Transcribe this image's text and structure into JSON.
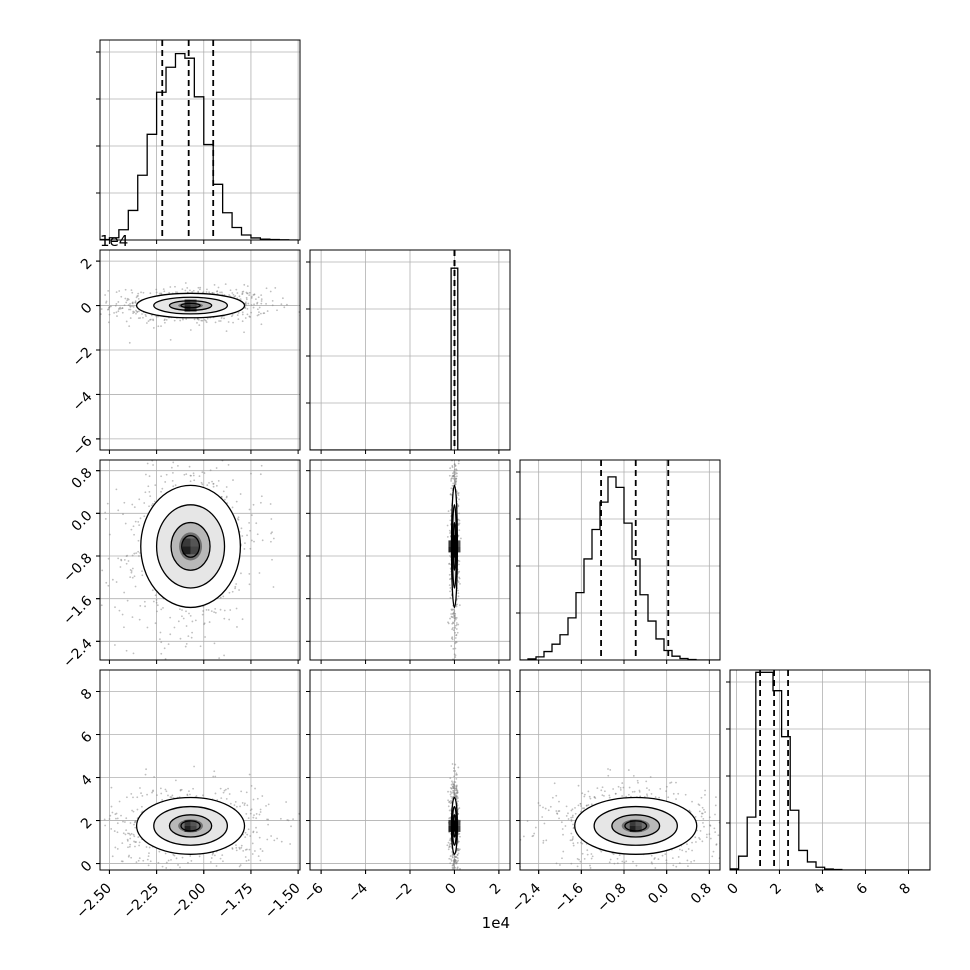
{
  "chart_data": {
    "type": "corner",
    "grid": true,
    "colors": {
      "line": "#000000",
      "grid": "#b0b0b0",
      "scatter": "#808080",
      "axes_bg": "#ffffff"
    },
    "x_offset_labels": [
      "",
      "1e4",
      "",
      ""
    ],
    "y_offset_labels": [
      "",
      "1e4",
      "",
      ""
    ],
    "params": [
      {
        "range": [
          -2.55,
          -1.49
        ],
        "ticks": [
          -2.5,
          -2.25,
          -2.0,
          -1.75,
          -1.5
        ],
        "tick_labels": [
          "−2.50",
          "−2.25",
          "−2.00",
          "−1.75",
          "−1.50"
        ]
      },
      {
        "range": [
          -6.5,
          2.5
        ],
        "ticks": [
          -6,
          -4,
          -2,
          0,
          2
        ],
        "tick_labels": [
          "−6",
          "−4",
          "−2",
          "0",
          "2"
        ]
      },
      {
        "range": [
          -2.75,
          1.0
        ],
        "ticks": [
          -2.4,
          -1.6,
          -0.8,
          0.0,
          0.8
        ],
        "tick_labels": [
          "−2.4",
          "−1.6",
          "−0.8",
          "0.0",
          "0.8"
        ]
      },
      {
        "range": [
          -0.3,
          9.0
        ],
        "ticks": [
          0,
          2,
          4,
          6,
          8
        ],
        "tick_labels": [
          "0",
          "2",
          "4",
          "6",
          "8"
        ]
      }
    ],
    "histograms": [
      {
        "bins": [
          -2.55,
          -2.5,
          -2.45,
          -2.4,
          -2.35,
          -2.3,
          -2.25,
          -2.2,
          -2.15,
          -2.1,
          -2.05,
          -2.0,
          -1.95,
          -1.9,
          -1.85,
          -1.8,
          -1.75,
          -1.7,
          -1.65,
          -1.6,
          -1.55,
          -1.5
        ],
        "counts": [
          2,
          10,
          45,
          130,
          285,
          465,
          650,
          760,
          820,
          800,
          630,
          420,
          245,
          120,
          55,
          22,
          9,
          4,
          2,
          1,
          0
        ],
        "ymax": 880,
        "quantiles": [
          -2.22,
          -2.08,
          -1.95
        ]
      },
      {
        "bins": [
          -6.5,
          -6.0,
          -5.5,
          -5.0,
          -4.5,
          -4.0,
          -3.5,
          -3.0,
          -2.5,
          -2.0,
          -1.5,
          -1.0,
          -0.5,
          -0.15,
          0.15,
          0.5,
          1.0,
          1.5,
          2.0,
          2.5
        ],
        "counts": [
          0,
          0,
          0,
          0,
          0,
          0,
          0,
          0,
          0,
          0,
          0,
          0,
          0,
          1000,
          0,
          0,
          0,
          0,
          0
        ],
        "ymax": 1100,
        "quantiles": [
          0.0,
          0.0,
          0.0
        ]
      },
      {
        "bins": [
          -2.75,
          -2.6,
          -2.45,
          -2.3,
          -2.15,
          -2.0,
          -1.85,
          -1.7,
          -1.55,
          -1.4,
          -1.25,
          -1.1,
          -0.95,
          -0.8,
          -0.65,
          -0.5,
          -0.35,
          -0.2,
          -0.05,
          0.1,
          0.25,
          0.4,
          0.55,
          0.7,
          0.85,
          1.0
        ],
        "counts": [
          0,
          5,
          15,
          40,
          75,
          120,
          200,
          320,
          480,
          620,
          750,
          870,
          820,
          650,
          480,
          310,
          185,
          100,
          45,
          18,
          7,
          2,
          0,
          0,
          0
        ],
        "ymax": 950,
        "quantiles": [
          -1.23,
          -0.58,
          0.03
        ]
      },
      {
        "bins": [
          -0.3,
          0.1,
          0.5,
          0.9,
          1.3,
          1.7,
          2.1,
          2.5,
          2.9,
          3.3,
          3.7,
          4.1,
          4.5,
          4.9,
          5.3,
          5.7,
          6.1,
          6.5,
          6.9,
          7.3,
          7.7,
          8.1,
          8.5,
          9.0
        ],
        "counts": [
          5,
          60,
          230,
          860,
          860,
          780,
          580,
          260,
          85,
          35,
          12,
          4,
          2,
          0,
          0,
          0,
          0,
          0,
          0,
          0,
          0,
          0,
          0
        ],
        "ymax": 870,
        "quantiles": [
          1.1,
          1.75,
          2.4
        ]
      }
    ],
    "pairs": [
      {
        "x": 0,
        "y": 1,
        "cx": -2.07,
        "cy": 0.0,
        "sx": 0.13,
        "sy": 0.25,
        "rho": 0.0
      },
      {
        "x": 0,
        "y": 2,
        "cx": -2.07,
        "cy": -0.62,
        "sx": 0.12,
        "sy": 0.52,
        "rho": 0.15
      },
      {
        "x": 0,
        "y": 3,
        "cx": -2.07,
        "cy": 1.75,
        "sx": 0.13,
        "sy": 0.6,
        "rho": 0.0
      },
      {
        "x": 1,
        "y": 2,
        "cx": 0.0,
        "cy": -0.62,
        "sx": 0.06,
        "sy": 0.52,
        "rho": 0.0
      },
      {
        "x": 1,
        "y": 3,
        "cx": 0.0,
        "cy": 1.75,
        "sx": 0.06,
        "sy": 0.6,
        "rho": 0.0
      },
      {
        "x": 2,
        "y": 3,
        "cx": -0.58,
        "cy": 1.75,
        "sx": 0.52,
        "sy": 0.6,
        "rho": 0.0
      }
    ]
  }
}
